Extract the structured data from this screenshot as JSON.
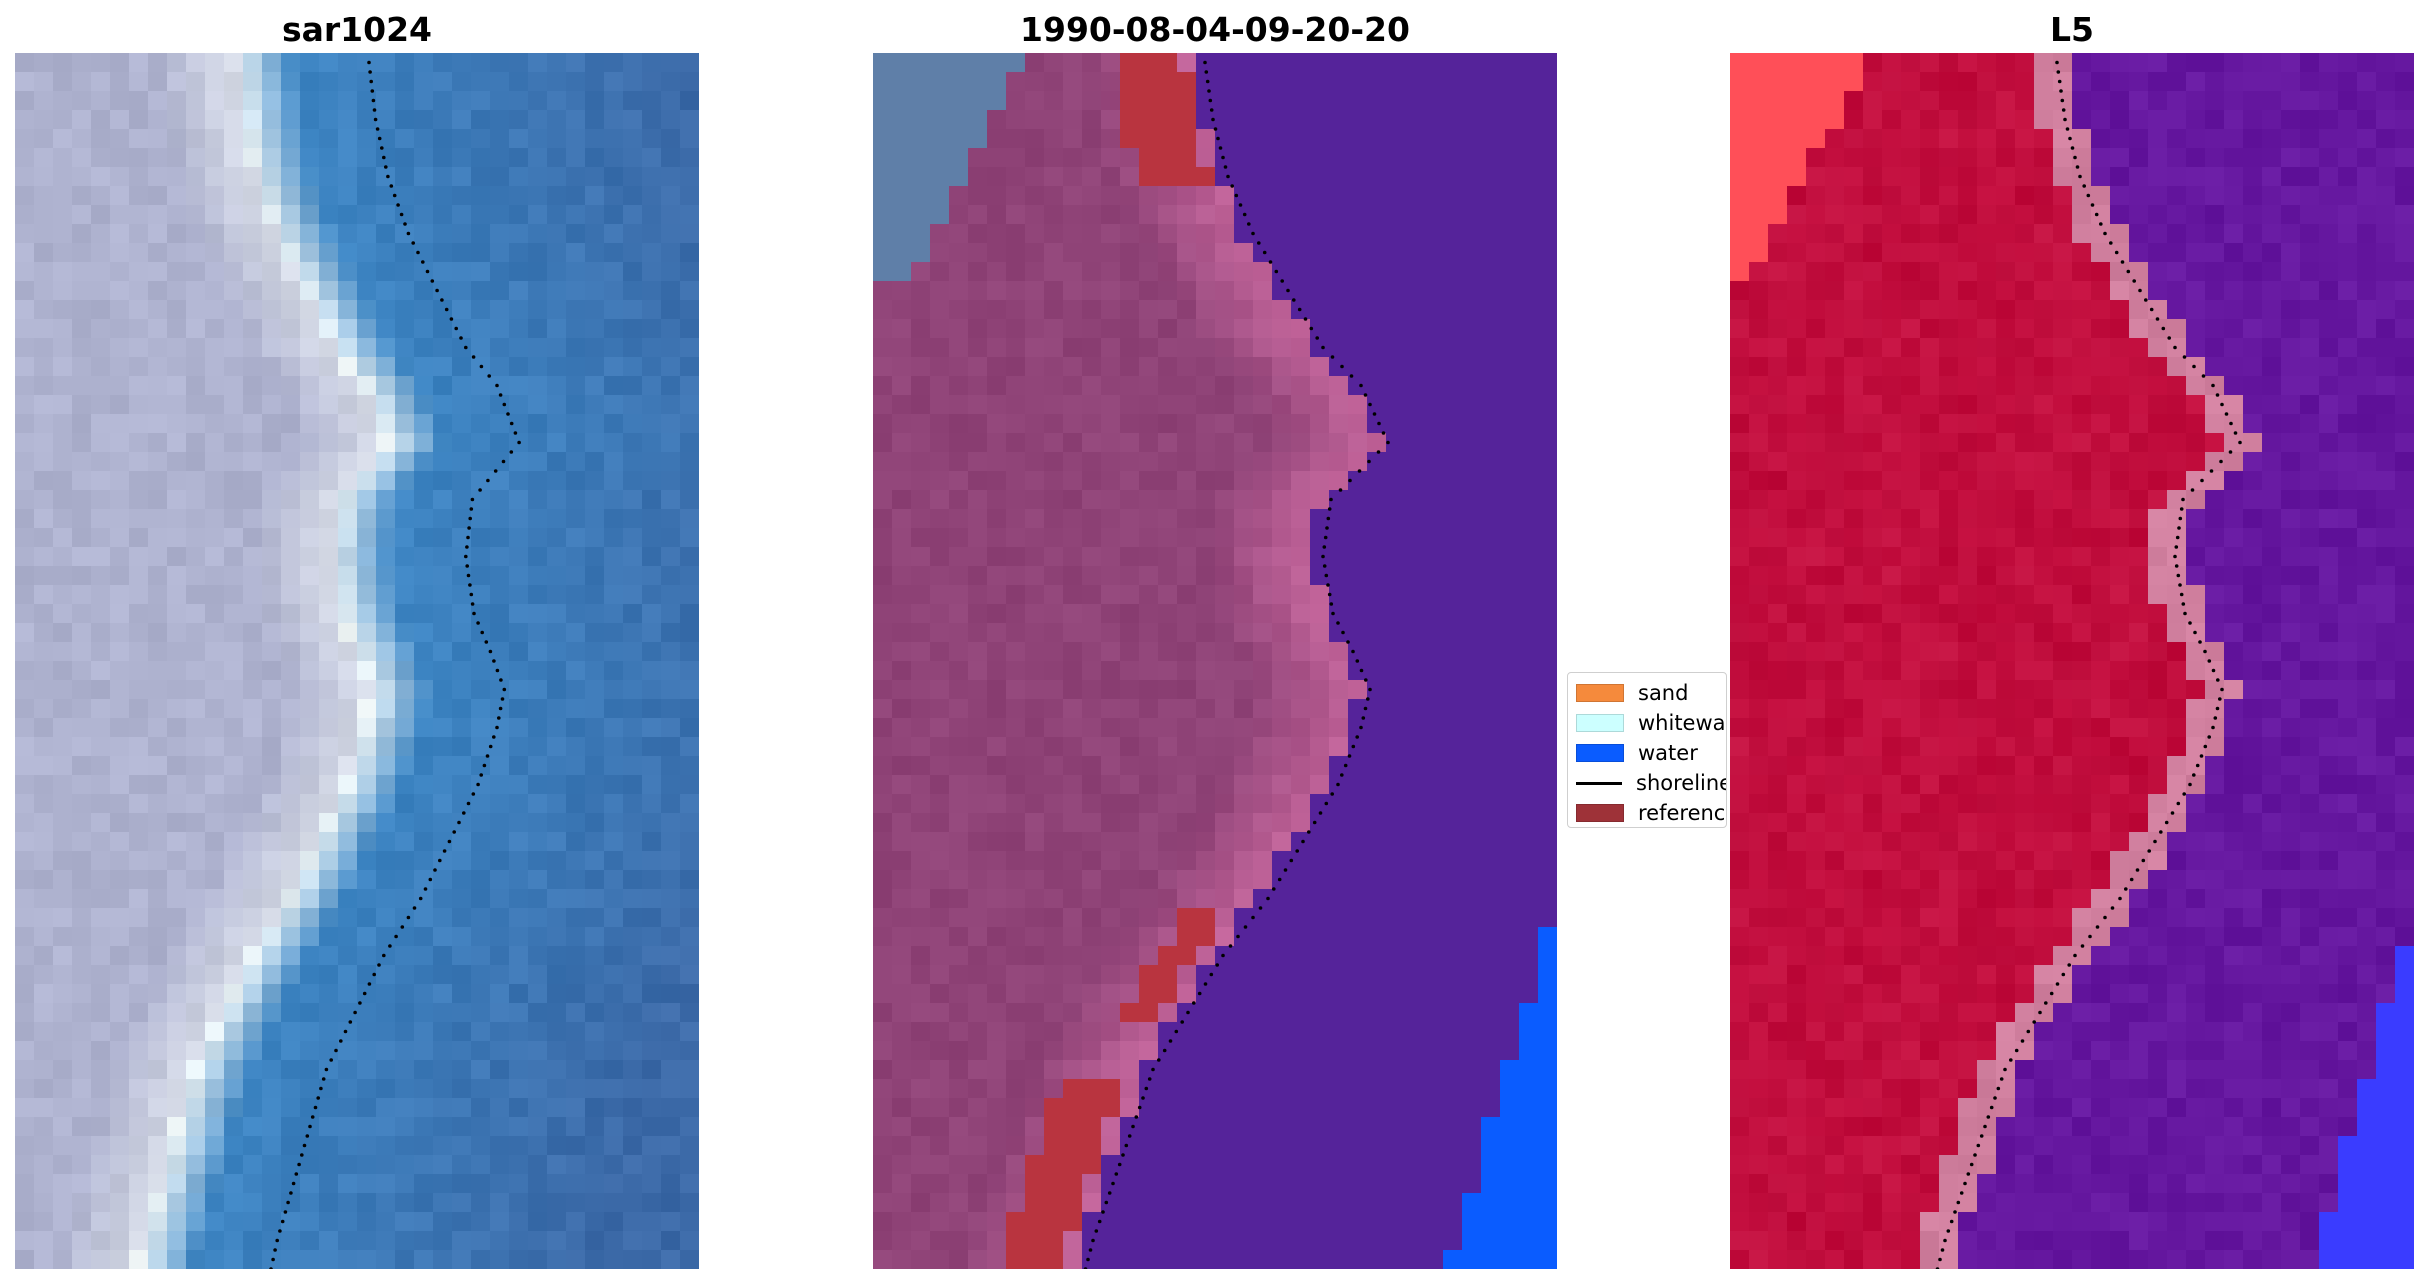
{
  "panels": [
    {
      "id": "sar",
      "title": "sar1024"
    },
    {
      "id": "classified",
      "title": "1990-08-04-09-20-20"
    },
    {
      "id": "band",
      "title": "L5"
    }
  ],
  "legend": {
    "items": [
      {
        "label": "sand",
        "color": "#f58a3c",
        "kind": "patch"
      },
      {
        "label": "whitewater",
        "color": "#ccffff",
        "kind": "patch"
      },
      {
        "label": "water",
        "color": "#0a5cff",
        "kind": "patch"
      },
      {
        "label": "shoreline",
        "color": "#000000",
        "kind": "line"
      },
      {
        "label": "reference",
        "color": "#9e3238",
        "kind": "patch"
      }
    ]
  },
  "colors": {
    "sar_water": "#3d86c4",
    "sar_beach": "#aeb2cf",
    "sar_white": "#f2f8f8",
    "class_land": "#8f4377",
    "class_edge": "#c2649a",
    "class_ocean": "#55239a",
    "class_reference": "#b9343f",
    "class_water": "#0a5cff",
    "class_corner": "#5f7fa8",
    "band_land": "#bf0a3a",
    "band_edge": "#d07f9e",
    "band_ocean": "#65179f",
    "band_corner": "#ff4f58",
    "band_water": "#3a3cff"
  }
}
